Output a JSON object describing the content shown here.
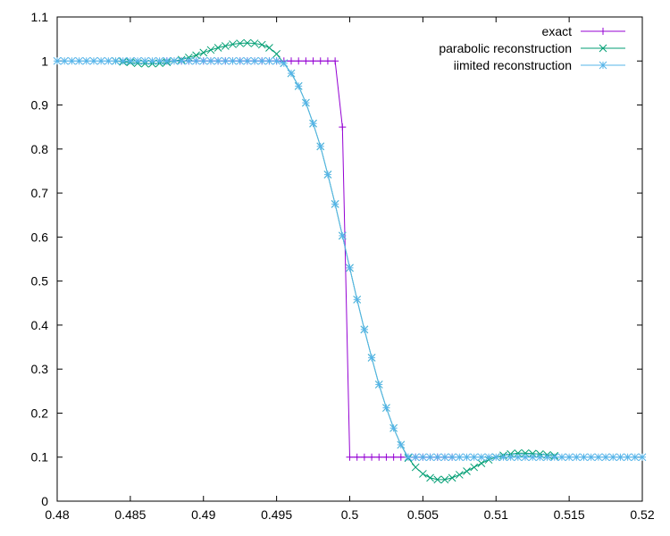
{
  "chart_data": {
    "type": "line",
    "title": "",
    "xlabel": "",
    "ylabel": "",
    "xlim": [
      0.48,
      0.52
    ],
    "ylim": [
      0,
      1.1
    ],
    "xticks": [
      0.48,
      0.485,
      0.49,
      0.495,
      0.5,
      0.505,
      0.51,
      0.515,
      0.52
    ],
    "xtick_labels": [
      "0.48",
      "0.485",
      "0.49",
      "0.495",
      "0.5",
      "0.505",
      "0.51",
      "0.515",
      "0.52"
    ],
    "yticks": [
      0,
      0.1,
      0.2,
      0.3,
      0.4,
      0.5,
      0.6,
      0.7,
      0.8,
      0.9,
      1,
      1.1
    ],
    "ytick_labels": [
      "0",
      "0.1",
      "0.2",
      "0.3",
      "0.4",
      "0.5",
      "0.6",
      "0.7",
      "0.8",
      "0.9",
      "1",
      "1.1"
    ],
    "grid": false,
    "legend_position": "top-right",
    "series": [
      {
        "name": "exact",
        "color": "#9400d3",
        "marker": "plus",
        "points": [
          [
            0.4875,
            1
          ],
          [
            0.488,
            1
          ],
          [
            0.4885,
            1
          ],
          [
            0.489,
            1
          ],
          [
            0.4895,
            1
          ],
          [
            0.49,
            1
          ],
          [
            0.4905,
            1
          ],
          [
            0.491,
            1
          ],
          [
            0.4915,
            1
          ],
          [
            0.492,
            1
          ],
          [
            0.4925,
            1
          ],
          [
            0.493,
            1
          ],
          [
            0.4935,
            1
          ],
          [
            0.494,
            1
          ],
          [
            0.4945,
            1
          ],
          [
            0.495,
            1
          ],
          [
            0.4955,
            1
          ],
          [
            0.496,
            1
          ],
          [
            0.4965,
            1
          ],
          [
            0.497,
            1
          ],
          [
            0.4975,
            1
          ],
          [
            0.498,
            1
          ],
          [
            0.4985,
            1
          ],
          [
            0.499,
            1
          ],
          [
            0.4995,
            0.85
          ],
          [
            0.5,
            0.1
          ],
          [
            0.5005,
            0.1
          ],
          [
            0.501,
            0.1
          ],
          [
            0.5015,
            0.1
          ],
          [
            0.502,
            0.1
          ],
          [
            0.5025,
            0.1
          ],
          [
            0.503,
            0.1
          ],
          [
            0.5035,
            0.1
          ],
          [
            0.504,
            0.1
          ],
          [
            0.5045,
            0.1
          ],
          [
            0.505,
            0.1
          ],
          [
            0.5055,
            0.1
          ],
          [
            0.506,
            0.1
          ],
          [
            0.5065,
            0.1
          ],
          [
            0.507,
            0.1
          ]
        ]
      },
      {
        "name": "parabolic reconstruction",
        "color": "#009e73",
        "marker": "cross",
        "points": [
          [
            0.484,
            1
          ],
          [
            0.4845,
            0.998
          ],
          [
            0.485,
            0.997
          ],
          [
            0.4855,
            0.995
          ],
          [
            0.486,
            0.994
          ],
          [
            0.4865,
            0.994
          ],
          [
            0.487,
            0.995
          ],
          [
            0.4875,
            0.997
          ],
          [
            0.488,
            1
          ],
          [
            0.4885,
            1.003
          ],
          [
            0.489,
            1.008
          ],
          [
            0.4895,
            1.013
          ],
          [
            0.49,
            1.019
          ],
          [
            0.4905,
            1.025
          ],
          [
            0.491,
            1.03
          ],
          [
            0.4915,
            1.034
          ],
          [
            0.492,
            1.038
          ],
          [
            0.4925,
            1.04
          ],
          [
            0.493,
            1.041
          ],
          [
            0.4935,
            1.04
          ],
          [
            0.494,
            1.037
          ],
          [
            0.4945,
            1.03
          ],
          [
            0.495,
            1.016
          ],
          [
            0.4955,
            0.995
          ],
          [
            0.496,
            0.972
          ],
          [
            0.4965,
            0.943
          ],
          [
            0.497,
            0.905
          ],
          [
            0.4975,
            0.858
          ],
          [
            0.498,
            0.806
          ],
          [
            0.4985,
            0.742
          ],
          [
            0.499,
            0.675
          ],
          [
            0.4995,
            0.603
          ],
          [
            0.5,
            0.53
          ],
          [
            0.5005,
            0.458
          ],
          [
            0.501,
            0.39
          ],
          [
            0.5015,
            0.326
          ],
          [
            0.502,
            0.265
          ],
          [
            0.5025,
            0.212
          ],
          [
            0.503,
            0.166
          ],
          [
            0.5035,
            0.128
          ],
          [
            0.504,
            0.098
          ],
          [
            0.5045,
            0.077
          ],
          [
            0.505,
            0.062
          ],
          [
            0.5055,
            0.053
          ],
          [
            0.506,
            0.049
          ],
          [
            0.5065,
            0.049
          ],
          [
            0.507,
            0.053
          ],
          [
            0.5075,
            0.06
          ],
          [
            0.508,
            0.068
          ],
          [
            0.5085,
            0.077
          ],
          [
            0.509,
            0.086
          ],
          [
            0.5095,
            0.094
          ],
          [
            0.51,
            0.1
          ],
          [
            0.5105,
            0.104
          ],
          [
            0.511,
            0.107
          ],
          [
            0.5115,
            0.109
          ],
          [
            0.512,
            0.109
          ],
          [
            0.5125,
            0.108
          ],
          [
            0.513,
            0.107
          ],
          [
            0.5135,
            0.105
          ],
          [
            0.514,
            0.103
          ]
        ]
      },
      {
        "name": "iimited reconstruction",
        "color": "#56b4e9",
        "marker": "star",
        "points": [
          [
            0.48,
            1
          ],
          [
            0.4805,
            1
          ],
          [
            0.481,
            1
          ],
          [
            0.4815,
            1
          ],
          [
            0.482,
            1
          ],
          [
            0.4825,
            1
          ],
          [
            0.483,
            1
          ],
          [
            0.4835,
            1
          ],
          [
            0.484,
            1
          ],
          [
            0.4845,
            1
          ],
          [
            0.485,
            1
          ],
          [
            0.4855,
            1
          ],
          [
            0.486,
            1
          ],
          [
            0.4865,
            1
          ],
          [
            0.487,
            1
          ],
          [
            0.4875,
            1
          ],
          [
            0.488,
            1
          ],
          [
            0.4885,
            1
          ],
          [
            0.489,
            1
          ],
          [
            0.4895,
            1
          ],
          [
            0.49,
            1
          ],
          [
            0.4905,
            1
          ],
          [
            0.491,
            1
          ],
          [
            0.4915,
            1
          ],
          [
            0.492,
            1
          ],
          [
            0.4925,
            1
          ],
          [
            0.493,
            1
          ],
          [
            0.4935,
            1
          ],
          [
            0.494,
            1
          ],
          [
            0.4945,
            1
          ],
          [
            0.495,
            1
          ],
          [
            0.4955,
            0.995
          ],
          [
            0.496,
            0.972
          ],
          [
            0.4965,
            0.943
          ],
          [
            0.497,
            0.905
          ],
          [
            0.4975,
            0.858
          ],
          [
            0.498,
            0.806
          ],
          [
            0.4985,
            0.742
          ],
          [
            0.499,
            0.675
          ],
          [
            0.4995,
            0.603
          ],
          [
            0.5,
            0.53
          ],
          [
            0.5005,
            0.458
          ],
          [
            0.501,
            0.39
          ],
          [
            0.5015,
            0.326
          ],
          [
            0.502,
            0.265
          ],
          [
            0.5025,
            0.212
          ],
          [
            0.503,
            0.166
          ],
          [
            0.5035,
            0.128
          ],
          [
            0.504,
            0.1
          ],
          [
            0.5045,
            0.1
          ],
          [
            0.505,
            0.1
          ],
          [
            0.5055,
            0.1
          ],
          [
            0.506,
            0.1
          ],
          [
            0.5065,
            0.1
          ],
          [
            0.507,
            0.1
          ],
          [
            0.5075,
            0.1
          ],
          [
            0.508,
            0.1
          ],
          [
            0.5085,
            0.1
          ],
          [
            0.509,
            0.1
          ],
          [
            0.5095,
            0.1
          ],
          [
            0.51,
            0.1
          ],
          [
            0.5105,
            0.1
          ],
          [
            0.511,
            0.1
          ],
          [
            0.5115,
            0.1
          ],
          [
            0.512,
            0.1
          ],
          [
            0.5125,
            0.1
          ],
          [
            0.513,
            0.1
          ],
          [
            0.5135,
            0.1
          ],
          [
            0.514,
            0.1
          ],
          [
            0.5145,
            0.1
          ],
          [
            0.515,
            0.1
          ],
          [
            0.5155,
            0.1
          ],
          [
            0.516,
            0.1
          ],
          [
            0.5165,
            0.1
          ],
          [
            0.517,
            0.1
          ],
          [
            0.5175,
            0.1
          ],
          [
            0.518,
            0.1
          ],
          [
            0.5185,
            0.1
          ],
          [
            0.519,
            0.1
          ],
          [
            0.5195,
            0.1
          ],
          [
            0.52,
            0.1
          ]
        ]
      }
    ]
  }
}
